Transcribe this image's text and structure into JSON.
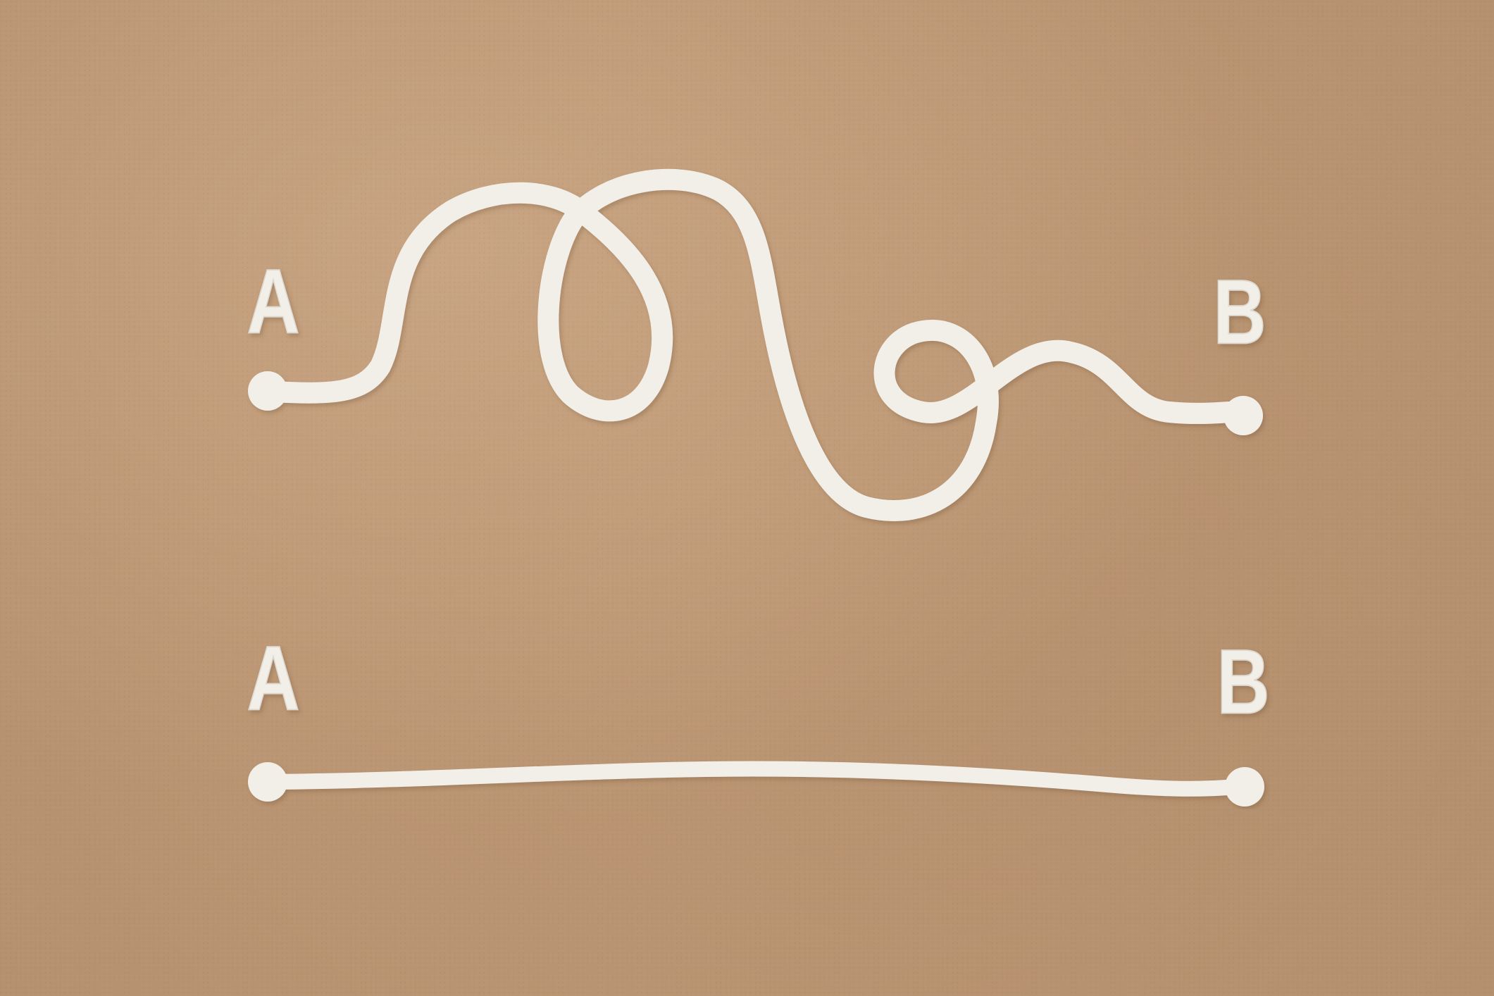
{
  "photo": {
    "colors": {
      "cardboard": "#c09a77",
      "paper": "#f2efe9",
      "paper_edge": "#ddd8cf"
    },
    "top_route": {
      "start_label": "A",
      "end_label": "B"
    },
    "bottom_route": {
      "start_label": "A",
      "end_label": "B"
    }
  }
}
